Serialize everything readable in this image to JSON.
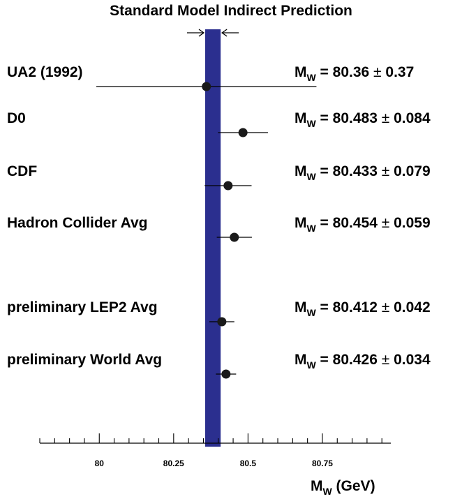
{
  "chart_data": {
    "type": "scatter",
    "title": "Standard Model Indirect Prediction",
    "xlabel": {
      "main": "M",
      "sub": "W",
      "unit": " (GeV)"
    },
    "xlim": [
      79.8,
      80.98
    ],
    "x_ticks": [
      80,
      80.25,
      80.5,
      80.75
    ],
    "x_tick_labels": [
      "80",
      "80.25",
      "80.5",
      "80.75"
    ],
    "x_minor_step": 0.05,
    "band": {
      "label": "Standard Model Indirect Prediction",
      "range": [
        80.356,
        80.408
      ],
      "color": "#2b2f8f"
    },
    "label_prefix": {
      "main": "M",
      "sub": "W",
      "eq": " = "
    },
    "marker_color": "#1a1a1a",
    "points": [
      {
        "label": "UA2 (1992)",
        "value": 80.36,
        "error": 0.37,
        "value_text": "80.36",
        "error_text": "0.37"
      },
      {
        "label": "D0",
        "value": 80.483,
        "error": 0.084,
        "value_text": "80.483",
        "error_text": "0.084"
      },
      {
        "label": "CDF",
        "value": 80.433,
        "error": 0.079,
        "value_text": "80.433",
        "error_text": "0.079"
      },
      {
        "label": "Hadron Collider Avg",
        "value": 80.454,
        "error": 0.059,
        "value_text": "80.454",
        "error_text": "0.059"
      },
      {
        "label": "preliminary LEP2 Avg",
        "value": 80.412,
        "error": 0.042,
        "value_text": "80.412",
        "error_text": "0.042"
      },
      {
        "label": "preliminary World Avg",
        "value": 80.426,
        "error": 0.034,
        "value_text": "80.426",
        "error_text": "0.034"
      }
    ]
  }
}
